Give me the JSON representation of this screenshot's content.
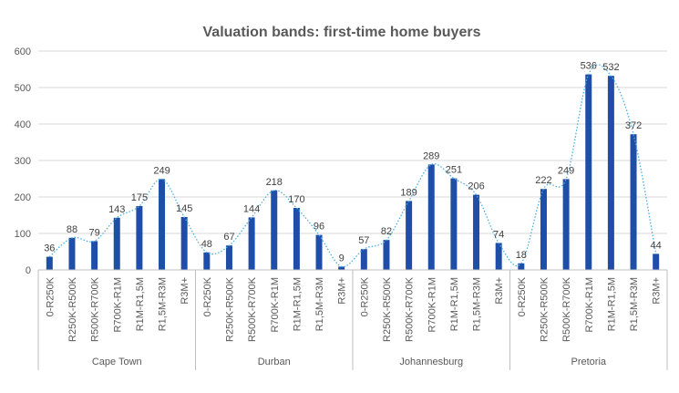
{
  "chart_data": {
    "type": "bar",
    "title": "Valuation bands: first-time home buyers",
    "ylim": [
      0,
      600
    ],
    "yticks": [
      "0",
      "100",
      "200",
      "300",
      "400",
      "500",
      "600"
    ],
    "grid": true,
    "bar_color": "#1f4ea8",
    "trendline_color": "#4aaee6",
    "groups": [
      {
        "name": "Cape Town",
        "categories": [
          "0-R250K",
          "R250K-R500K",
          "R500K-R700K",
          "R700K-R1M",
          "R1M-R1,5M",
          "R1,5M-R3M",
          "R3M+"
        ],
        "values": [
          36,
          88,
          79,
          143,
          175,
          249,
          145
        ]
      },
      {
        "name": "Durban",
        "categories": [
          "0-R250K",
          "R250K-R500K",
          "R500K-R700K",
          "R700K-R1M",
          "R1M-R1,5M",
          "R1,5M-R3M",
          "R3M+"
        ],
        "values": [
          48,
          67,
          144,
          218,
          170,
          96,
          9
        ]
      },
      {
        "name": "Johannesburg",
        "categories": [
          "0-R250K",
          "R250K-R500K",
          "R500K-R700K",
          "R700K-R1M",
          "R1M-R1,5M",
          "R1,5M-R3M",
          "R3M+"
        ],
        "values": [
          57,
          82,
          189,
          289,
          251,
          206,
          74
        ]
      },
      {
        "name": "Pretoria",
        "categories": [
          "0-R250K",
          "R250K-R500K",
          "R500K-R700K",
          "R700K-R1M",
          "R1M-R1,5M",
          "R1,5M-R3M",
          "R3M+"
        ],
        "values": [
          18,
          222,
          249,
          536,
          532,
          372,
          44
        ]
      }
    ]
  }
}
